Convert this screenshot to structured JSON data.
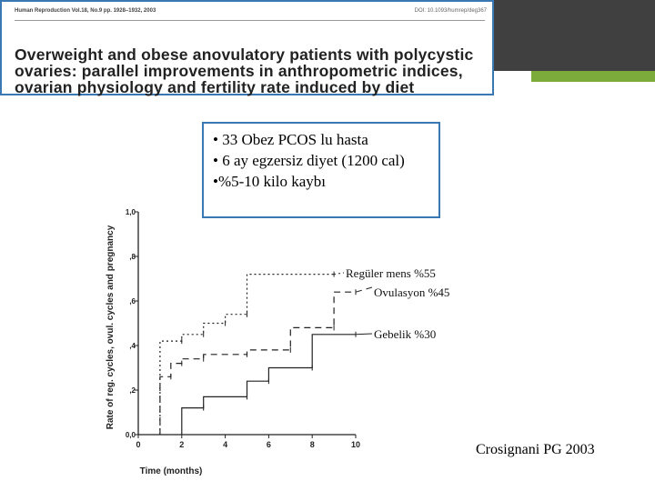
{
  "paper": {
    "journal": "Human Reproduction Vol.18, No.9 pp. 1928–1932, 2003",
    "doi": "DOI: 10.1093/humrep/deg367",
    "title": "Overweight and obese anovulatory patients with polycystic ovaries: parallel improvements in anthropometric indices, ovarian physiology and fertility rate induced by diet"
  },
  "bullets": [
    "• 33 Obez PCOS lu hasta",
    "• 6 ay egzersiz diyet (1200 cal)",
    "•%5-10 kilo kaybı"
  ],
  "credit": "Crosignani PG 2003",
  "colors": {
    "accent_border": "#3a78b4",
    "top_bar": "#404040",
    "green_bar": "#7cab3c"
  },
  "chart_data": {
    "type": "line",
    "subtype": "step",
    "xlabel": "Time (months)",
    "ylabel": "Rate of reg. cycles, ovul. cycles and pregnancy",
    "xlim": [
      0,
      10
    ],
    "ylim": [
      0,
      1
    ],
    "x_ticks": [
      "0",
      "2",
      "4",
      "6",
      "8",
      "10"
    ],
    "y_ticks": [
      "0,0",
      ",2",
      ",4",
      ",6",
      ",8",
      "1,0"
    ],
    "series": [
      {
        "name": "Regüler mens %55",
        "style": "dotted",
        "points": [
          [
            1,
            0
          ],
          [
            1,
            0.42
          ],
          [
            2,
            0.42
          ],
          [
            2,
            0.45
          ],
          [
            3,
            0.45
          ],
          [
            3,
            0.5
          ],
          [
            4,
            0.5
          ],
          [
            4,
            0.54
          ],
          [
            5,
            0.54
          ],
          [
            5,
            0.72
          ],
          [
            9,
            0.72
          ]
        ]
      },
      {
        "name": "Ovulasyon %45",
        "style": "dashed",
        "points": [
          [
            1,
            0
          ],
          [
            1,
            0.26
          ],
          [
            1.5,
            0.26
          ],
          [
            1.5,
            0.32
          ],
          [
            2,
            0.32
          ],
          [
            2,
            0.34
          ],
          [
            3,
            0.34
          ],
          [
            3,
            0.36
          ],
          [
            5,
            0.36
          ],
          [
            5,
            0.38
          ],
          [
            7,
            0.38
          ],
          [
            7,
            0.48
          ],
          [
            9,
            0.48
          ],
          [
            9,
            0.64
          ],
          [
            10,
            0.64
          ]
        ]
      },
      {
        "name": "Gebelik %30",
        "style": "solid",
        "points": [
          [
            2,
            0
          ],
          [
            2,
            0.12
          ],
          [
            3,
            0.12
          ],
          [
            3,
            0.17
          ],
          [
            5,
            0.17
          ],
          [
            5,
            0.24
          ],
          [
            6,
            0.24
          ],
          [
            6,
            0.3
          ],
          [
            8,
            0.3
          ],
          [
            8,
            0.45
          ],
          [
            10,
            0.45
          ]
        ]
      }
    ]
  }
}
